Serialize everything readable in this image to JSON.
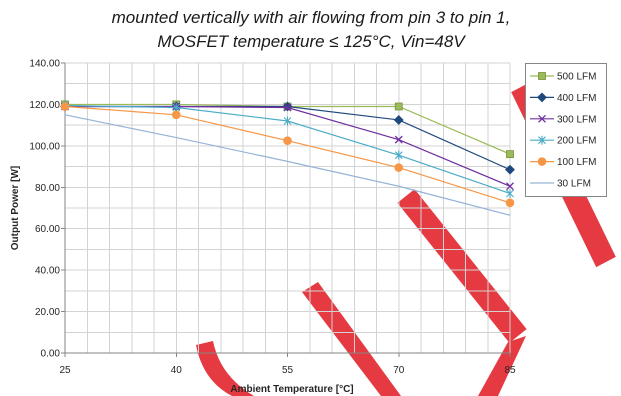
{
  "chart_data": {
    "type": "line",
    "title": [
      "mounted vertically with air flowing from pin 3 to pin 1,",
      "MOSFET temperature ≤ 125°C, Vin=48V"
    ],
    "xlabel": "Ambient Temperature [°C]",
    "ylabel": "Output Power [W]",
    "x": [
      25,
      40,
      55,
      70,
      85
    ],
    "x_tick_labels": [
      "25",
      "40",
      "55",
      "70",
      "85"
    ],
    "y_ticks": [
      0,
      20,
      40,
      60,
      80,
      100,
      120,
      140
    ],
    "y_tick_labels": [
      "0.00",
      "20.00",
      "40.00",
      "60.00",
      "80.00",
      "100.00",
      "120.00",
      "140.00"
    ],
    "xlim": [
      25,
      85
    ],
    "ylim": [
      0,
      140
    ],
    "grid": true,
    "legend": "right",
    "series": [
      {
        "name": "500 LFM",
        "color": "#9bbb59",
        "marker": "square",
        "values": [
          120,
          120,
          119,
          119,
          96
        ]
      },
      {
        "name": "400 LFM",
        "color": "#1f497d",
        "marker": "diamond",
        "values": [
          119,
          119,
          119,
          112.5,
          88.5
        ]
      },
      {
        "name": "300 LFM",
        "color": "#7030a0",
        "marker": "x",
        "values": [
          119,
          119,
          118.5,
          103,
          80.5
        ]
      },
      {
        "name": "200 LFM",
        "color": "#4bacc6",
        "marker": "asterisk",
        "values": [
          119.5,
          118.5,
          112,
          95.5,
          77
        ]
      },
      {
        "name": "100 LFM",
        "color": "#f79646",
        "marker": "circle",
        "values": [
          119,
          115,
          102.5,
          89.5,
          72.5
        ]
      },
      {
        "name": "30 LFM",
        "color": "#95b3d7",
        "marker": "none",
        "values": [
          115,
          104,
          92.5,
          80.5,
          66.5
        ]
      }
    ]
  }
}
